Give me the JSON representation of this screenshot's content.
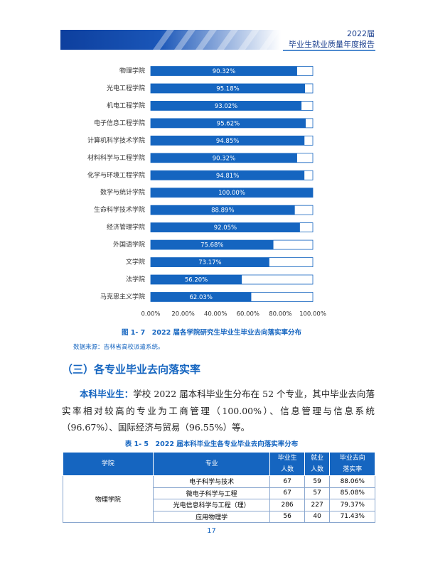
{
  "header": {
    "year": "2022届",
    "report_title": "毕业生就业质量年度报告"
  },
  "chart_data": {
    "type": "hbar",
    "categories": [
      "物理学院",
      "光电工程学院",
      "机电工程学院",
      "电子信息工程学院",
      "计算机科学技术学院",
      "材料科学与工程学院",
      "化学与环境工程学院",
      "数学与统计学院",
      "生命科学技术学院",
      "经济管理学院",
      "外国语学院",
      "文学院",
      "法学院",
      "马克思主义学院"
    ],
    "values": [
      90.32,
      95.18,
      93.02,
      95.62,
      94.85,
      90.32,
      94.81,
      100.0,
      88.89,
      92.05,
      75.68,
      73.17,
      56.2,
      62.03
    ],
    "value_labels": [
      "90.32%",
      "95.18%",
      "93.02%",
      "95.62%",
      "94.85%",
      "90.32%",
      "94.81%",
      "100.00%",
      "88.89%",
      "92.05%",
      "75.68%",
      "73.17%",
      "56.20%",
      "62.03%"
    ],
    "color": "#1565c0",
    "xlim": [
      0,
      100
    ],
    "xticks": [
      {
        "value": 0,
        "label": "0.00%"
      },
      {
        "value": 20,
        "label": "20.00%"
      },
      {
        "value": 40,
        "label": "40.00%"
      },
      {
        "value": 60,
        "label": "60.00%"
      },
      {
        "value": 80,
        "label": "80.00%"
      },
      {
        "value": 100,
        "label": "100.00%"
      }
    ]
  },
  "figure_caption": "图 1- 7　2022 届各学院研究生毕业生毕业去向落实率分布",
  "source": "数据来源：吉林省高校派遣系统。",
  "section_heading": "（三）各专业毕业去向落实率",
  "paragraph": {
    "lead": "本科毕业生：",
    "text": "学校 2022 届本科毕业生分布在 52 个专业，其中毕业去向落实率相对较高的专业为工商管理（100.00%）、信息管理与信息系统（96.67%）、国际经济与贸易（96.55%）等。"
  },
  "table_caption": "表 1- 5　2022 届本科毕业生各专业毕业去向落实率分布",
  "table": {
    "header": [
      "学院",
      "专业",
      "毕业生\n人数",
      "就业\n人数",
      "毕业去向\n落实率"
    ],
    "college": "物理学院",
    "rows": [
      [
        "电子科学与技术",
        67,
        59,
        "88.06%"
      ],
      [
        "微电子科学与工程",
        67,
        57,
        "85.08%"
      ],
      [
        "光电信息科学与工程（理）",
        286,
        227,
        "79.37%"
      ],
      [
        "应用物理学",
        56,
        40,
        "71.43%"
      ]
    ]
  },
  "page_number": "17"
}
